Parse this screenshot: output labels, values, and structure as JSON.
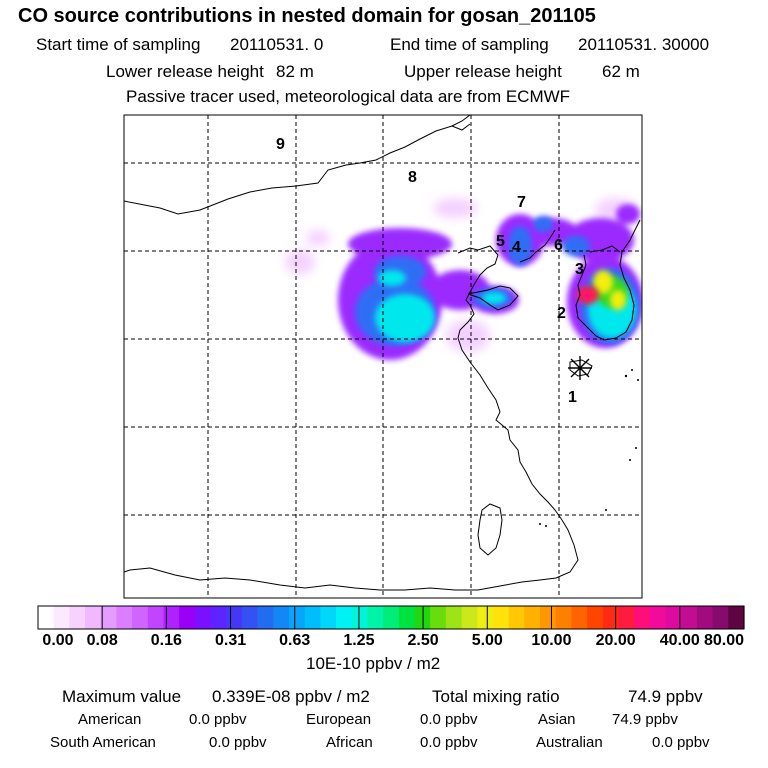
{
  "header": {
    "title": "CO  source contributions in nested domain for gosan_201105",
    "start_label": "Start time of sampling",
    "start_value": "20110531.     0",
    "end_label": "End time of sampling",
    "end_value": "20110531. 30000",
    "lower_label": "Lower release height",
    "lower_value": "82 m",
    "upper_label": "Upper release height",
    "upper_value": "62 m",
    "note": "Passive tracer used, meteorological data are from ECMWF"
  },
  "chart_data": {
    "type": "heatmap",
    "title": "CO  source contributions in nested domain for gosan_201105",
    "map_labels": [
      "1",
      "2",
      "3",
      "4",
      "5",
      "6",
      "7",
      "8",
      "9"
    ],
    "colorbar": {
      "tick_labels": [
        "0.00",
        "0.08",
        "0.16",
        "0.31",
        "0.63",
        "1.25",
        "2.50",
        "5.00",
        "10.00",
        "20.00",
        "40.00",
        "80.00"
      ],
      "unit_label": "10E-10 ppbv / m2",
      "colors": [
        "#ffffff",
        "#fde9ff",
        "#f8d2ff",
        "#f0b8ff",
        "#e59cff",
        "#dc7eff",
        "#d064ff",
        "#c244ff",
        "#b021ff",
        "#9a00f6",
        "#7a10ff",
        "#5d24ff",
        "#4637f7",
        "#3452f3",
        "#226cf2",
        "#1487f6",
        "#09a4fb",
        "#00bdfb",
        "#00d7fa",
        "#00f2f5",
        "#00f5d8",
        "#00f4a8",
        "#00ee78",
        "#00e23e",
        "#20d711",
        "#68dd0b",
        "#9ee316",
        "#cbe918",
        "#ecee14",
        "#ffe20c",
        "#ffc804",
        "#ffb000",
        "#ff9700",
        "#ff7f00",
        "#ff6400",
        "#ff4500",
        "#ff2a12",
        "#ff1a40",
        "#ff0d78",
        "#f20a9c",
        "#dd0a9f",
        "#c20d92",
        "#a20a80",
        "#870a6e",
        "#5c0540"
      ]
    }
  },
  "summary": {
    "max_label": "Maximum value",
    "max_value": "0.339E-08 ppbv / m2",
    "total_label": "Total mixing ratio",
    "total_value": "74.9 ppbv",
    "american_label": "American",
    "american_value": "0.0 ppbv",
    "european_label": "European",
    "european_value": "0.0 ppbv",
    "asian_label": "Asian",
    "asian_value": "74.9 ppbv",
    "south_american_label": "South American",
    "south_american_value": "0.0 ppbv",
    "african_label": "African",
    "african_value": "0.0 ppbv",
    "australian_label": "Australian",
    "australian_value": "0.0 ppbv"
  }
}
